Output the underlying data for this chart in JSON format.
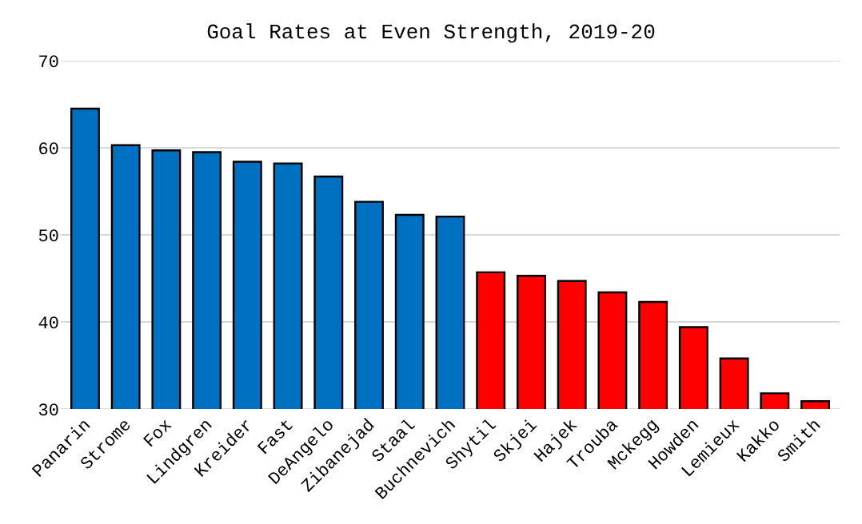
{
  "chart_data": {
    "type": "bar",
    "title": "Goal Rates at Even Strength, 2019-20",
    "categories": [
      "Panarin",
      "Strome",
      "Fox",
      "Lindgren",
      "Kreider",
      "Fast",
      "DeAngelo",
      "Zibanejad",
      "Staal",
      "Buchnevich",
      "Shytil",
      "Skjei",
      "Hajek",
      "Trouba",
      "Mckegg",
      "Howden",
      "Lemieux",
      "Kakko",
      "Smith"
    ],
    "values": [
      64.5,
      60.3,
      59.7,
      59.5,
      58.4,
      58.2,
      56.7,
      53.8,
      52.3,
      52.1,
      45.7,
      45.3,
      44.7,
      43.4,
      42.3,
      39.4,
      35.8,
      31.8,
      30.9
    ],
    "colors": [
      "#0070c0",
      "#0070c0",
      "#0070c0",
      "#0070c0",
      "#0070c0",
      "#0070c0",
      "#0070c0",
      "#0070c0",
      "#0070c0",
      "#0070c0",
      "#ff0000",
      "#ff0000",
      "#ff0000",
      "#ff0000",
      "#ff0000",
      "#ff0000",
      "#ff0000",
      "#ff0000",
      "#ff0000"
    ],
    "ylim": [
      30,
      70
    ],
    "yticks": [
      30,
      40,
      50,
      60,
      70
    ],
    "grid": "y"
  }
}
